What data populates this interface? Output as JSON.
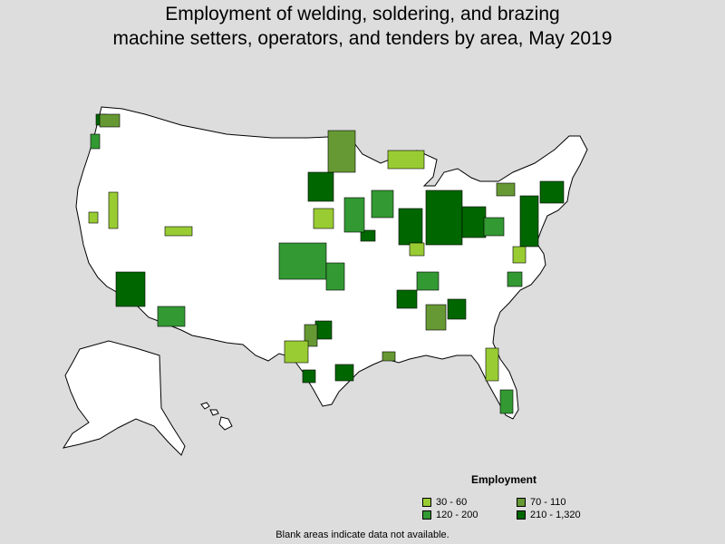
{
  "title_line1": "Employment of welding, soldering, and brazing",
  "title_line2": "machine setters, operators, and tenders by area, May 2019",
  "legend": {
    "title": "Employment",
    "items": [
      {
        "label": "30 - 60",
        "color": "#99cc33"
      },
      {
        "label": "70 - 110",
        "color": "#669933"
      },
      {
        "label": "120 - 200",
        "color": "#339933"
      },
      {
        "label": "210 - 1,320",
        "color": "#006600"
      }
    ]
  },
  "note": "Blank areas indicate data not available.",
  "colors": {
    "background": "#dddddd",
    "land": "#ffffff",
    "border": "#000000"
  }
}
